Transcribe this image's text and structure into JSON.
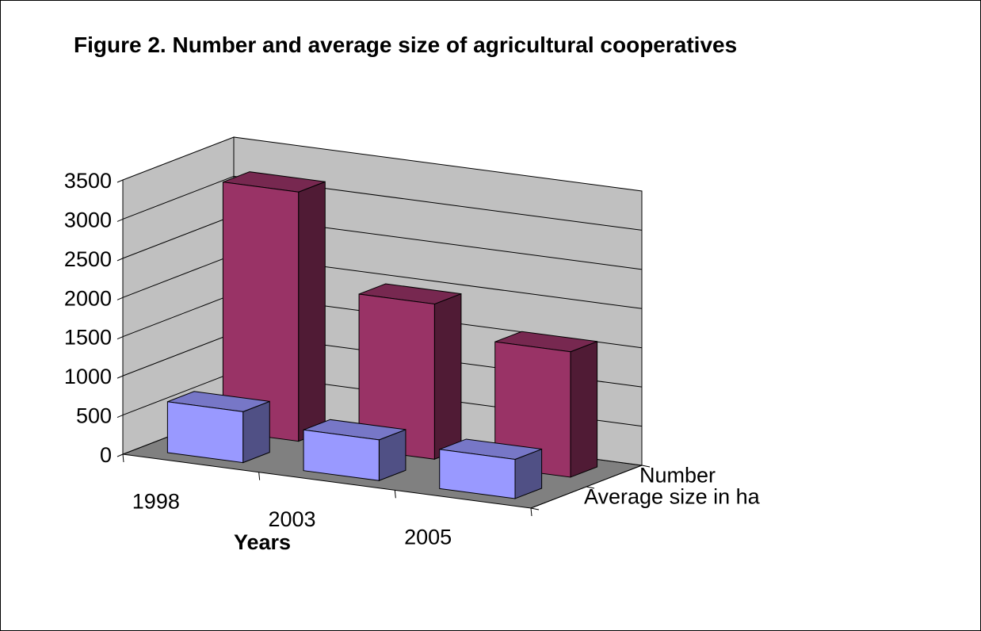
{
  "chart_data": {
    "type": "bar",
    "title": "Figure 2. Number and average size of agricultural cooperatives",
    "categories": [
      "1998",
      "2003",
      "2005"
    ],
    "series": [
      {
        "name": "Average size in ha",
        "values": [
          650,
          520,
          500
        ],
        "color": "#9999ff"
      },
      {
        "name": "Number",
        "values": [
          3180,
          1980,
          1600
        ],
        "color": "#993366"
      }
    ],
    "xlabel": "Years",
    "ylabel": "",
    "ylim": [
      0,
      3500
    ],
    "yticks": [
      "0",
      "500",
      "1000",
      "1500",
      "2000",
      "2500",
      "3000",
      "3500"
    ],
    "grid": true,
    "style": "3d-clustered-depth",
    "colors": {
      "wall": "#c0c0c0",
      "floor": "#808080",
      "gridline": "#000000"
    }
  }
}
